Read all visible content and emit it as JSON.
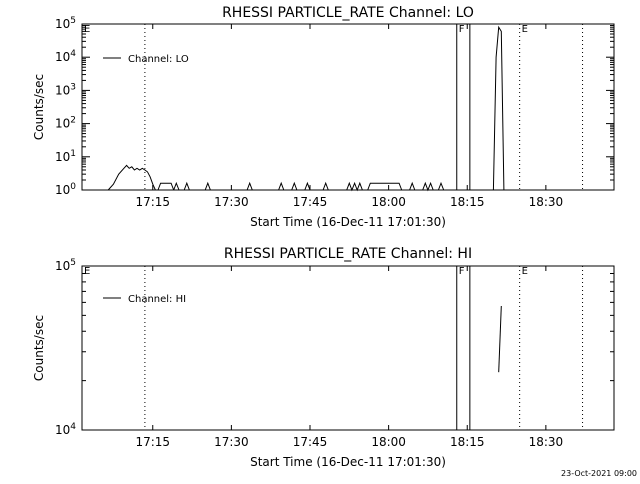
{
  "timestamp": "23-Oct-2021 09:00",
  "chart_data": [
    {
      "type": "line",
      "title": "RHESSI PARTICLE_RATE Channel: LO",
      "xlabel": "Start Time (16-Dec-11 17:01:30)",
      "ylabel": "Counts/sec",
      "yscale": "log",
      "xlim": [
        "17:01:30",
        "18:43:00"
      ],
      "ylim": [
        1,
        100000
      ],
      "x_ticks": [
        "17:15",
        "17:30",
        "17:45",
        "18:00",
        "18:15",
        "18:30"
      ],
      "y_ticks": [
        {
          "value": 1,
          "base": "10",
          "exp": "0"
        },
        {
          "value": 10,
          "base": "10",
          "exp": "1"
        },
        {
          "value": 100,
          "base": "10",
          "exp": "2"
        },
        {
          "value": 1000,
          "base": "10",
          "exp": "3"
        },
        {
          "value": 10000,
          "base": "10",
          "exp": "4"
        },
        {
          "value": 100000,
          "base": "10",
          "exp": "5"
        }
      ],
      "legend": {
        "label": "Channel: LO",
        "position": "top-left"
      },
      "markers": [
        {
          "label": "E",
          "time": "17:01:30",
          "style": "none"
        },
        {
          "label": "",
          "time": "17:13:30",
          "style": "dotted"
        },
        {
          "label": "F",
          "time": "18:13:00",
          "style": "solid"
        },
        {
          "label": "",
          "time": "18:15:30",
          "style": "solid"
        },
        {
          "label": "E",
          "time": "18:25:00",
          "style": "dotted"
        },
        {
          "label": "",
          "time": "18:37:00",
          "style": "dotted"
        }
      ],
      "series": [
        {
          "name": "Channel: LO",
          "points": [
            [
              "17:04:30",
              1
            ],
            [
              "17:06:30",
              1
            ],
            [
              "17:07:30",
              1.5
            ],
            [
              "17:08:30",
              3
            ],
            [
              "17:09:30",
              4.5
            ],
            [
              "17:10:00",
              5.5
            ],
            [
              "17:10:30",
              4.5
            ],
            [
              "17:11:00",
              5
            ],
            [
              "17:11:30",
              4
            ],
            [
              "17:12:00",
              4.5
            ],
            [
              "17:12:30",
              4
            ],
            [
              "17:13:00",
              4.5
            ],
            [
              "17:13:30",
              4
            ],
            [
              "17:14:00",
              3.5
            ],
            [
              "17:14:30",
              2.5
            ],
            [
              "17:15:00",
              1.5
            ],
            [
              "17:15:30",
              1
            ],
            null,
            [
              "17:16:00",
              1
            ],
            [
              "17:16:30",
              1.6
            ],
            [
              "17:18:30",
              1.6
            ],
            [
              "17:19:00",
              1
            ],
            null,
            [
              "17:19:00",
              1
            ],
            [
              "17:19:30",
              1.6
            ],
            [
              "17:20:00",
              1
            ],
            null,
            [
              "17:21:00",
              1
            ],
            [
              "17:21:30",
              1.6
            ],
            [
              "17:22:00",
              1
            ],
            null,
            [
              "17:25:00",
              1
            ],
            [
              "17:25:30",
              1.6
            ],
            [
              "17:26:00",
              1
            ],
            null,
            [
              "17:33:00",
              1
            ],
            [
              "17:33:30",
              1.6
            ],
            [
              "17:34:00",
              1
            ],
            null,
            [
              "17:39:00",
              1
            ],
            [
              "17:39:30",
              1.6
            ],
            [
              "17:40:00",
              1
            ],
            null,
            [
              "17:41:30",
              1
            ],
            [
              "17:42:00",
              1.6
            ],
            [
              "17:42:30",
              1
            ],
            null,
            [
              "17:44:00",
              1
            ],
            [
              "17:44:30",
              1.6
            ],
            [
              "17:45:00",
              1
            ],
            null,
            [
              "17:47:30",
              1
            ],
            [
              "17:48:00",
              1.6
            ],
            [
              "17:48:30",
              1
            ],
            null,
            [
              "17:52:00",
              1
            ],
            [
              "17:52:30",
              1.6
            ],
            [
              "17:53:00",
              1
            ],
            [
              "17:53:30",
              1.6
            ],
            [
              "17:54:00",
              1
            ],
            [
              "17:54:30",
              1.6
            ],
            [
              "17:55:00",
              1
            ],
            null,
            [
              "17:56:00",
              1
            ],
            [
              "17:56:30",
              1.6
            ],
            [
              "18:02:00",
              1.6
            ],
            [
              "18:02:30",
              1
            ],
            null,
            [
              "18:04:00",
              1
            ],
            [
              "18:04:30",
              1.6
            ],
            [
              "18:05:00",
              1
            ],
            null,
            [
              "18:06:30",
              1
            ],
            [
              "18:07:00",
              1.6
            ],
            [
              "18:07:30",
              1
            ],
            [
              "18:08:00",
              1.6
            ],
            [
              "18:08:30",
              1
            ],
            null,
            [
              "18:09:30",
              1
            ],
            [
              "18:10:00",
              1.6
            ],
            [
              "18:10:30",
              1
            ],
            null,
            [
              "18:20:00",
              1
            ],
            [
              "18:20:30",
              10000
            ],
            [
              "18:21:00",
              80000
            ],
            [
              "18:21:30",
              60000
            ],
            [
              "18:22:00",
              1
            ]
          ]
        }
      ]
    },
    {
      "type": "line",
      "title": "RHESSI PARTICLE_RATE Channel: HI",
      "xlabel": "Start Time (16-Dec-11 17:01:30)",
      "ylabel": "Counts/sec",
      "yscale": "log",
      "xlim": [
        "17:01:30",
        "18:43:00"
      ],
      "ylim": [
        10000,
        100000
      ],
      "x_ticks": [
        "17:15",
        "17:30",
        "17:45",
        "18:00",
        "18:15",
        "18:30"
      ],
      "y_ticks": [
        {
          "value": 10000,
          "base": "10",
          "exp": "4"
        },
        {
          "value": 100000,
          "base": "10",
          "exp": "5"
        }
      ],
      "legend": {
        "label": "Channel: HI",
        "position": "top-left"
      },
      "markers": [
        {
          "label": "E",
          "time": "17:01:30",
          "style": "none"
        },
        {
          "label": "",
          "time": "17:13:30",
          "style": "dotted"
        },
        {
          "label": "F",
          "time": "18:13:00",
          "style": "solid"
        },
        {
          "label": "",
          "time": "18:15:30",
          "style": "solid"
        },
        {
          "label": "E",
          "time": "18:25:00",
          "style": "dotted"
        },
        {
          "label": "",
          "time": "18:37:00",
          "style": "dotted"
        }
      ],
      "series": [
        {
          "name": "Channel: HI",
          "points": [
            [
              "18:21:00",
              22500
            ],
            [
              "18:21:30",
              57000
            ]
          ]
        }
      ]
    }
  ]
}
